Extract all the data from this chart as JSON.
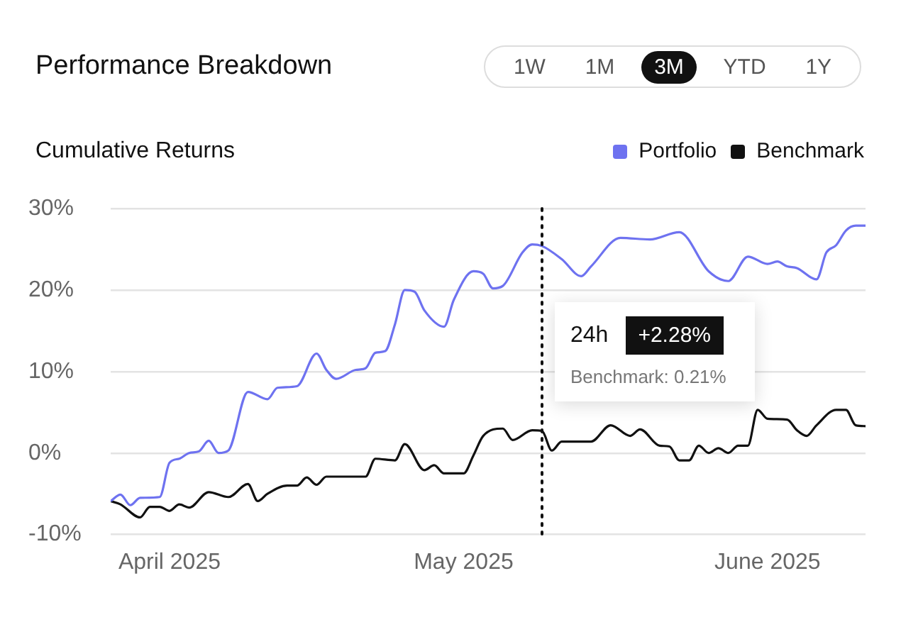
{
  "chart_data": {
    "type": "line",
    "title": "Performance Breakdown",
    "subtitle": "Cumulative Returns",
    "annotations": [
      "1W",
      "1M",
      "3M",
      "YTD",
      "1Y",
      "24h",
      "+2.28%",
      "Benchmark: 0.21%"
    ],
    "xlim": [
      "2025-03-26",
      "2025-06-11"
    ],
    "xticks": [
      {
        "value": "2025-04-01",
        "label": "April 2025"
      },
      {
        "value": "2025-05-01",
        "label": "May 2025"
      },
      {
        "value": "2025-06-01",
        "label": "June 2025"
      }
    ],
    "ylim": [
      -10,
      30
    ],
    "yticks": [
      {
        "value": -10,
        "label": "-10%"
      },
      {
        "value": 0,
        "label": "0%"
      },
      {
        "value": 10,
        "label": "10%"
      },
      {
        "value": 20,
        "label": "20%"
      },
      {
        "value": 30,
        "label": "30%"
      }
    ],
    "grid": "y",
    "legend": "top right",
    "marker": "none",
    "line_style": "solid",
    "ref_lines": [
      {
        "axis": "x",
        "value": "2025-05-09",
        "color": "#111111",
        "line_style": "dotted"
      }
    ],
    "series": [
      {
        "name": "Portfolio",
        "color": "#6e72f0",
        "x": [
          "2025-03-26",
          "2025-03-27",
          "2025-03-28",
          "2025-03-29",
          "2025-03-31",
          "2025-04-01",
          "2025-04-02",
          "2025-04-03",
          "2025-04-04",
          "2025-04-05",
          "2025-04-06",
          "2025-04-07",
          "2025-04-09",
          "2025-04-11",
          "2025-04-12",
          "2025-04-14",
          "2025-04-16",
          "2025-04-17",
          "2025-04-18",
          "2025-04-20",
          "2025-04-21",
          "2025-04-22",
          "2025-04-23",
          "2025-04-24",
          "2025-04-25",
          "2025-04-26",
          "2025-04-27",
          "2025-04-29",
          "2025-04-30",
          "2025-05-02",
          "2025-05-03",
          "2025-05-04",
          "2025-05-05",
          "2025-05-07",
          "2025-05-08",
          "2025-05-09",
          "2025-05-11",
          "2025-05-13",
          "2025-05-14",
          "2025-05-17",
          "2025-05-20",
          "2025-05-23",
          "2025-05-26",
          "2025-05-28",
          "2025-05-30",
          "2025-06-01",
          "2025-06-02",
          "2025-06-03",
          "2025-06-04",
          "2025-06-06",
          "2025-06-07",
          "2025-06-08",
          "2025-06-09",
          "2025-06-10",
          "2025-06-11"
        ],
        "values": [
          -5.9,
          -5.1,
          -6.4,
          -5.5,
          -5.4,
          -1.2,
          -0.7,
          0,
          0.2,
          1.5,
          0,
          0.3,
          7.5,
          6.6,
          8.0,
          8.2,
          12.2,
          10.2,
          9.1,
          10.2,
          10.4,
          12.3,
          12.5,
          15.8,
          20.0,
          19.8,
          17.5,
          15.5,
          18.8,
          22.3,
          22.0,
          20.2,
          20.5,
          24.6,
          25.6,
          25.4,
          23.8,
          21.7,
          22.9,
          26.4,
          26.2,
          27.1,
          22.3,
          21.1,
          24.1,
          23.2,
          23.5,
          22.9,
          22.7,
          21.3,
          24.6,
          25.5,
          27.3,
          27.9,
          27.9
        ]
      },
      {
        "name": "Benchmark",
        "color": "#111111",
        "x": [
          "2025-03-26",
          "2025-03-27",
          "2025-03-29",
          "2025-03-30",
          "2025-03-31",
          "2025-04-01",
          "2025-04-02",
          "2025-04-03",
          "2025-04-05",
          "2025-04-07",
          "2025-04-09",
          "2025-04-10",
          "2025-04-11",
          "2025-04-13",
          "2025-04-14",
          "2025-04-15",
          "2025-04-16",
          "2025-04-17",
          "2025-04-21",
          "2025-04-22",
          "2025-04-24",
          "2025-04-25",
          "2025-04-27",
          "2025-04-28",
          "2025-04-29",
          "2025-05-01",
          "2025-05-02",
          "2025-05-03",
          "2025-05-05",
          "2025-05-06",
          "2025-05-08",
          "2025-05-09",
          "2025-05-10",
          "2025-05-11",
          "2025-05-14",
          "2025-05-16",
          "2025-05-18",
          "2025-05-19",
          "2025-05-21",
          "2025-05-22",
          "2025-05-23",
          "2025-05-24",
          "2025-05-25",
          "2025-05-26",
          "2025-05-27",
          "2025-05-28",
          "2025-05-29",
          "2025-05-30",
          "2025-05-31",
          "2025-06-01",
          "2025-06-03",
          "2025-06-04",
          "2025-06-05",
          "2025-06-06",
          "2025-06-08",
          "2025-06-09",
          "2025-06-10",
          "2025-06-11"
        ],
        "values": [
          -5.9,
          -6.3,
          -7.9,
          -6.6,
          -6.6,
          -7.1,
          -6.3,
          -6.7,
          -4.8,
          -5.4,
          -3.8,
          -5.9,
          -5.0,
          -4.0,
          -4.0,
          -3.0,
          -3.9,
          -2.9,
          -2.9,
          -0.7,
          -0.9,
          1.1,
          -2.1,
          -1.5,
          -2.5,
          -2.5,
          -0.3,
          2.1,
          3.0,
          1.6,
          2.8,
          2.7,
          0.3,
          1.4,
          1.4,
          3.4,
          2.1,
          2.9,
          0.9,
          0.8,
          -0.9,
          -0.9,
          0.9,
          0,
          0.6,
          0,
          0.9,
          0.9,
          5.3,
          4.2,
          4.1,
          2.8,
          2.1,
          3.4,
          5.3,
          5.3,
          3.4,
          3.3
        ]
      }
    ]
  }
}
